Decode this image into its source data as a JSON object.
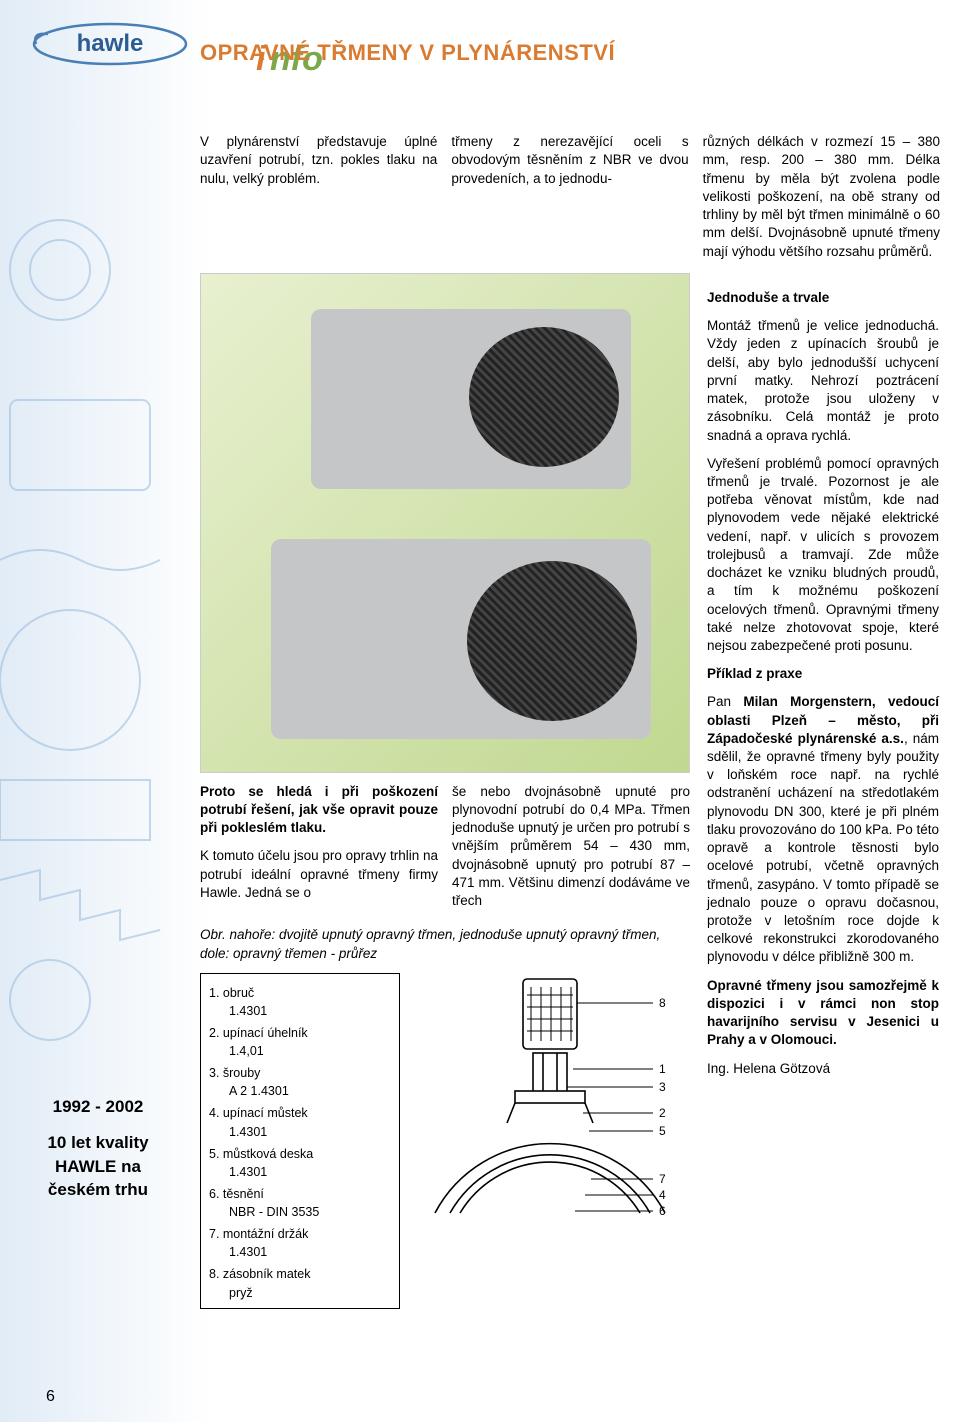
{
  "page": {
    "number": "6",
    "title": "OPRAVNÉ TŘMENY V PLYNÁRENSTVÍ"
  },
  "logo": {
    "brand": "hawle",
    "sub": "info"
  },
  "sidebar": {
    "line1": "1992 - 2002",
    "line2": "10 let kvality HAWLE na českém trhu"
  },
  "intro": {
    "col1": "V plynárenství představuje úplné uzavření potrubí, tzn. pokles tlaku na nulu, velký problém.",
    "col2": "třmeny z nerezavějící oceli s obvodovým těsněním z NBR ve dvou provedeních, a to jednodu-",
    "col3": "různých délkách v rozmezí 15 – 380 mm, resp. 200 – 380 mm. Délka třmenu by měla být zvolena podle velikosti poškození, na obě strany od trhliny by měl být třmen minimálně o 60 mm delší. Dvojnásobně upnuté třmeny mají výhodu většího rozsahu průměrů."
  },
  "right": {
    "h1": "Jednoduše a trvale",
    "p1": "Montáž třmenů je velice jednoduchá. Vždy jeden z upínacích šroubů je delší, aby bylo jednodušší uchycení první matky. Nehrozí poztrácení matek, protože jsou uloženy v zásobníku. Celá montáž je proto snadná a oprava rychlá.",
    "p2": "Vyřešení problémů pomocí opravných třmenů je trvalé. Pozornost je ale potřeba věnovat místům, kde nad plynovodem vede nějaké elektrické vedení, např. v ulicích s provozem trolejbusů a tramvají. Zde může docházet ke vzniku bludných proudů, a tím k možnému poškození ocelových třmenů. Opravnými třmeny také nelze zhotovovat spoje, které nejsou zabezpečené proti posunu.",
    "h2": "Příklad z praxe",
    "p3a": "Pan ",
    "p3b": "Milan Morgenstern, vedoucí oblasti Plzeň – město, při Západočeské plynárenské a.s.",
    "p3c": ", nám sdělil, že opravné třmeny byly použity v loňském roce např. na rychlé odstranění ucházení na středotlakém plynovodu DN 300, které je při plném tlaku provozováno do 100 kPa. Po této opravě a kontrole těsnosti bylo ocelové potrubí, včetně opravných třmenů, zasypáno. V tomto případě se jednalo pouze o opravu dočasnou, protože v letošním roce dojde k celkové rekonstrukci zkorodovaného plynovodu v délce přibližně 300 m.",
    "p4": "Opravné třmeny jsou samozřejmě k dispozici i v rámci non stop havarijního servisu v Jesenici u Prahy a v Olomouci.",
    "sig": "Ing. Helena Götzová"
  },
  "lower": {
    "l1": "Proto se hledá i při poškození potrubí řešení, jak vše opravit pouze při pokleslém tlaku.",
    "l2": "K tomuto účelu jsou pro opravy trhlin na potrubí ideální opravné třmeny firmy Hawle. Jedná se o",
    "r1": "še nebo dvojnásobně upnuté pro plynovodní potrubí do 0,4 MPa. Třmen jednoduše upnutý je určen pro potrubí s vnějším průměrem 54 – 430 mm, dvojnásobně upnutý pro potrubí 87 – 471 mm. Většinu dimenzí dodáváme ve třech",
    "caption": "Obr. nahoře: dvojitě upnutý opravný třmen, jednoduše upnutý opravný třmen,\ndole: opravný třemen - průřez"
  },
  "parts": [
    {
      "n": "1.",
      "label": "obruč",
      "mat": "1.4301"
    },
    {
      "n": "2.",
      "label": "upínací úhelník",
      "mat": "1.4,01"
    },
    {
      "n": "3.",
      "label": "šrouby",
      "mat": "A 2 1.4301"
    },
    {
      "n": "4.",
      "label": "upínací můstek",
      "mat": "1.4301"
    },
    {
      "n": "5.",
      "label": "můstková deska",
      "mat": "1.4301"
    },
    {
      "n": "6.",
      "label": "těsnění",
      "mat": "NBR - DIN 3535"
    },
    {
      "n": "7.",
      "label": "montážní držák",
      "mat": "1.4301"
    },
    {
      "n": "8.",
      "label": "zásobník matek",
      "mat": "pryž"
    }
  ],
  "diagram_labels": [
    "8",
    "1",
    "3",
    "2",
    "5",
    "7",
    "4",
    "6"
  ],
  "colors": {
    "title": "#d97b30",
    "logo_oval": "#4a7fb5",
    "logo_text": "#2b5d93",
    "info_i": "#d97b30",
    "info_rest": "#7aa84a",
    "bg_wash": "#9fbfe0"
  }
}
